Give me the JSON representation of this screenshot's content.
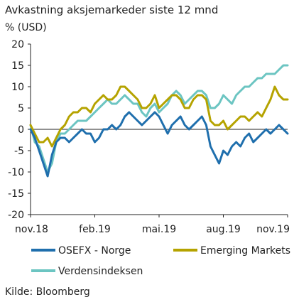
{
  "chart_data": {
    "type": "line",
    "title": "Avkastning aksjemarkeder siste 12 mnd",
    "unit_label": "% (USD)",
    "source": "Kilde: Bloomberg",
    "ylim": [
      -20,
      20
    ],
    "y_ticks": [
      "20",
      "15",
      "10",
      "5",
      "0",
      "-5",
      "-10",
      "-15",
      "-20"
    ],
    "x_tick_labels": [
      "nov.18",
      "feb.19",
      "mai.19",
      "aug.19",
      "nov.19"
    ],
    "x_ticks": [
      0,
      3,
      6,
      9,
      12
    ],
    "xlim": [
      0,
      12
    ],
    "grid": false,
    "zero_line": true,
    "legend_position": "bottom",
    "series": [
      {
        "name": "OSEFX - Norge",
        "color": "#1f6fad",
        "x": [
          0,
          0.2,
          0.4,
          0.6,
          0.8,
          1.0,
          1.2,
          1.4,
          1.6,
          1.8,
          2.0,
          2.2,
          2.4,
          2.6,
          2.8,
          3.0,
          3.2,
          3.4,
          3.6,
          3.8,
          4.0,
          4.2,
          4.4,
          4.6,
          4.8,
          5.0,
          5.2,
          5.4,
          5.6,
          5.8,
          6.0,
          6.2,
          6.4,
          6.6,
          6.8,
          7.0,
          7.2,
          7.4,
          7.6,
          7.8,
          8.0,
          8.2,
          8.4,
          8.6,
          8.8,
          9.0,
          9.2,
          9.4,
          9.6,
          9.8,
          10.0,
          10.2,
          10.4,
          10.6,
          10.8,
          11.0,
          11.2,
          11.4,
          11.6,
          11.8,
          12.0
        ],
        "values": [
          0,
          -2,
          -5,
          -8,
          -11,
          -6,
          -3,
          -2,
          -2,
          -3,
          -2,
          -1,
          0,
          -1,
          -1,
          -3,
          -2,
          0,
          0,
          1,
          0,
          1,
          3,
          4,
          3,
          2,
          1,
          2,
          3,
          4,
          3,
          1,
          -1,
          1,
          2,
          3,
          1,
          0,
          1,
          2,
          3,
          1,
          -4,
          -6,
          -8,
          -5,
          -6,
          -4,
          -3,
          -4,
          -2,
          -1,
          -3,
          -2,
          -1,
          0,
          -1,
          0,
          1,
          0,
          -1
        ]
      },
      {
        "name": "Emerging Markets",
        "color": "#b5a300",
        "x": [
          0,
          0.2,
          0.4,
          0.6,
          0.8,
          1.0,
          1.2,
          1.4,
          1.6,
          1.8,
          2.0,
          2.2,
          2.4,
          2.6,
          2.8,
          3.0,
          3.2,
          3.4,
          3.6,
          3.8,
          4.0,
          4.2,
          4.4,
          4.6,
          4.8,
          5.0,
          5.2,
          5.4,
          5.6,
          5.8,
          6.0,
          6.2,
          6.4,
          6.6,
          6.8,
          7.0,
          7.2,
          7.4,
          7.6,
          7.8,
          8.0,
          8.2,
          8.4,
          8.6,
          8.8,
          9.0,
          9.2,
          9.4,
          9.6,
          9.8,
          10.0,
          10.2,
          10.4,
          10.6,
          10.8,
          11.0,
          11.2,
          11.4,
          11.6,
          11.8,
          12.0
        ],
        "values": [
          1,
          -1,
          -3,
          -3,
          -2,
          -4,
          -2,
          0,
          1,
          3,
          4,
          4,
          5,
          5,
          4,
          6,
          7,
          8,
          7,
          7,
          8,
          10,
          10,
          9,
          8,
          7,
          5,
          5,
          6,
          8,
          5,
          6,
          7,
          8,
          8,
          7,
          5,
          5,
          7,
          8,
          8,
          7,
          2,
          1,
          1,
          2,
          0,
          1,
          2,
          3,
          3,
          2,
          3,
          4,
          3,
          5,
          7,
          10,
          8,
          7,
          7
        ]
      },
      {
        "name": "Verdensindeksen",
        "color": "#6cc5c2",
        "x": [
          0,
          0.2,
          0.4,
          0.6,
          0.8,
          1.0,
          1.2,
          1.4,
          1.6,
          1.8,
          2.0,
          2.2,
          2.4,
          2.6,
          2.8,
          3.0,
          3.2,
          3.4,
          3.6,
          3.8,
          4.0,
          4.2,
          4.4,
          4.6,
          4.8,
          5.0,
          5.2,
          5.4,
          5.6,
          5.8,
          6.0,
          6.2,
          6.4,
          6.6,
          6.8,
          7.0,
          7.2,
          7.4,
          7.6,
          7.8,
          8.0,
          8.2,
          8.4,
          8.6,
          8.8,
          9.0,
          9.2,
          9.4,
          9.6,
          9.8,
          10.0,
          10.2,
          10.4,
          10.6,
          10.8,
          11.0,
          11.2,
          11.4,
          11.6,
          11.8,
          12.0
        ],
        "values": [
          1,
          -3,
          -4,
          -7,
          -10,
          -8,
          -3,
          -1,
          -1,
          0,
          1,
          2,
          2,
          2,
          3,
          4,
          5,
          6,
          7,
          6,
          6,
          7,
          8,
          7,
          6,
          6,
          4,
          3,
          5,
          6,
          4,
          5,
          6,
          8,
          9,
          8,
          6,
          7,
          8,
          9,
          9,
          8,
          5,
          5,
          6,
          8,
          7,
          6,
          8,
          9,
          10,
          10,
          11,
          12,
          12,
          13,
          13,
          13,
          14,
          15,
          15
        ]
      }
    ]
  }
}
